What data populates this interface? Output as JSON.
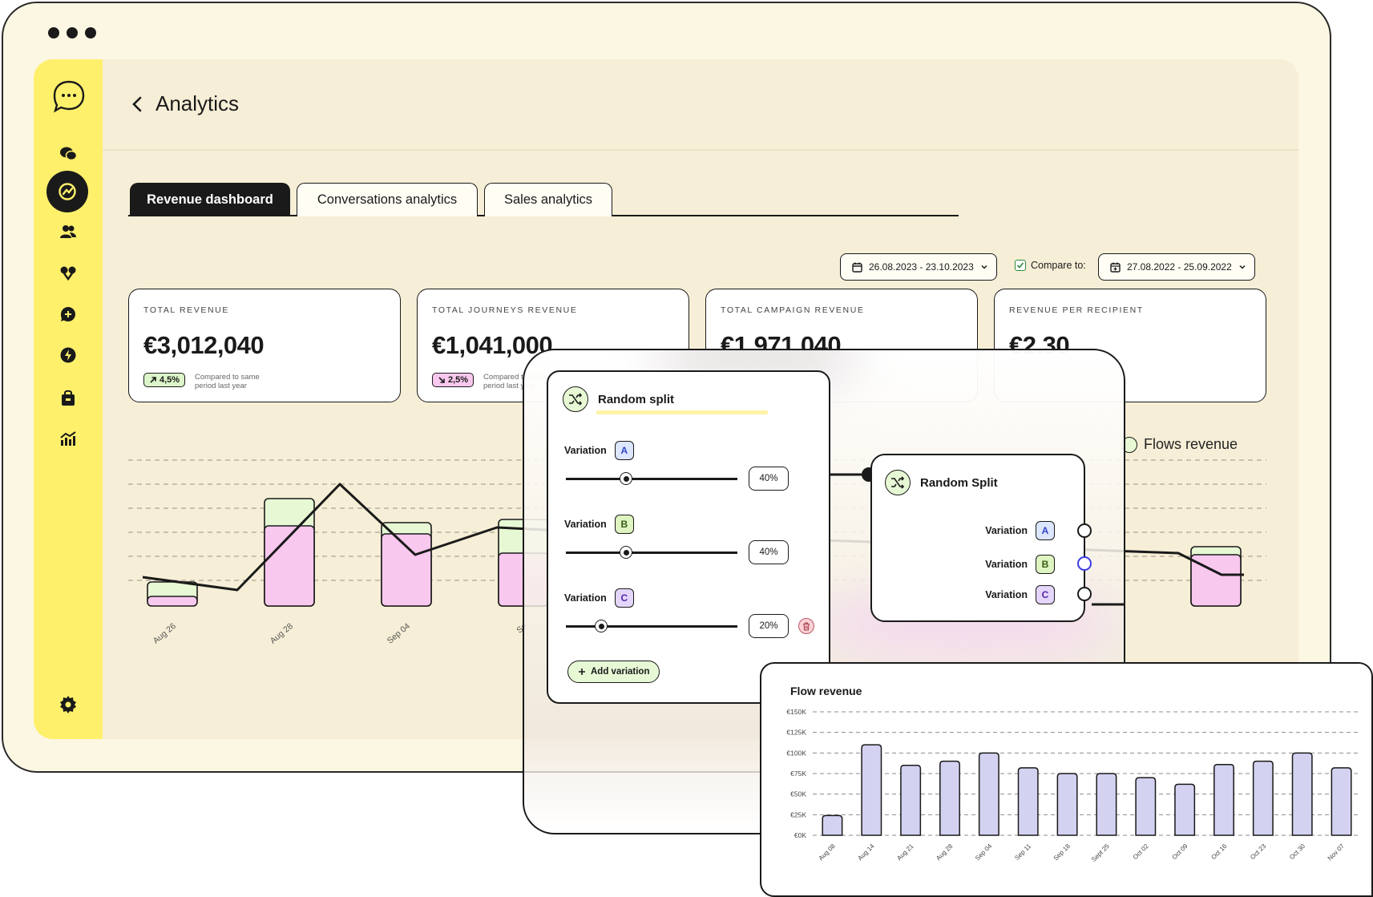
{
  "header": {
    "title": "Analytics"
  },
  "tabs": [
    {
      "label": "Revenue dashboard",
      "active": true
    },
    {
      "label": "Conversations analytics",
      "active": false
    },
    {
      "label": "Sales analytics",
      "active": false
    }
  ],
  "filters": {
    "date_range": "26.08.2023 - 23.10.2023",
    "compare_label": "Compare to:",
    "compare_checked": true,
    "compare_range": "27.08.2022 - 25.09.2022"
  },
  "kpis": [
    {
      "label": "TOTAL REVENUE",
      "value": "€3,012,040",
      "change": "4,5%",
      "direction": "up",
      "note": "Compared to same period last year"
    },
    {
      "label": "TOTAL JOURNEYS REVENUE",
      "value": "€1,041,000",
      "change": "2,5%",
      "direction": "down",
      "note": "Compared to same period last year"
    },
    {
      "label": "TOTAL CAMPAIGN REVENUE",
      "value": "€1,971,040"
    },
    {
      "label": "REVENUE PER RECIPIENT",
      "value": "€2.30"
    }
  ],
  "revenue_legend": {
    "flows": "Flows revenue"
  },
  "revenue_chart": {
    "ticks": [
      "Aug 26",
      "Aug 28",
      "Sep 04",
      "Se"
    ],
    "colors": {
      "campaigns": "#f9c8ee",
      "flows": "#e7f8d5"
    }
  },
  "random_split_node": {
    "title": "Random split",
    "variations": [
      {
        "label": "Variation",
        "tag": "A",
        "percent": "40%",
        "value": 40
      },
      {
        "label": "Variation",
        "tag": "B",
        "percent": "40%",
        "value": 40
      },
      {
        "label": "Variation",
        "tag": "C",
        "percent": "20%",
        "value": 20
      }
    ],
    "add_label": "Add variation"
  },
  "random_split_output": {
    "title": "Random Split",
    "outputs": [
      {
        "label": "Variation",
        "tag": "A"
      },
      {
        "label": "Variation",
        "tag": "B"
      },
      {
        "label": "Variation",
        "tag": "C"
      }
    ]
  },
  "flow_revenue_card": {
    "title": "Flow revenue"
  },
  "chart_data": {
    "type": "bar",
    "title": "Flow revenue",
    "categories": [
      "Aug 08",
      "Aug 14",
      "Aug 21",
      "Aug 28",
      "Sep 04",
      "Sep 11",
      "Sep 18",
      "Sept 25",
      "Oct 02",
      "Oct 09",
      "Oct 16",
      "Oct 23",
      "Oct 30",
      "Nov 07"
    ],
    "values": [
      24,
      110,
      85,
      90,
      100,
      82,
      75,
      75,
      70,
      62,
      86,
      90,
      100,
      82
    ],
    "ylim": [
      0,
      150
    ],
    "yticks": [
      "€0K",
      "€25K",
      "€50K",
      "€75K",
      "€100K",
      "€125K",
      "€150K"
    ],
    "grid": true,
    "bar_color": "#d3d2f1"
  }
}
